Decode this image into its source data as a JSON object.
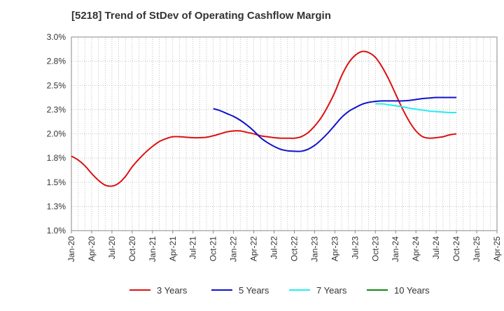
{
  "chart_data": {
    "type": "line",
    "title": "[5218]  Trend of StDev of Operating Cashflow Margin",
    "xlabel": "",
    "ylabel": "",
    "x_ticks": [
      "Jan-20",
      "Apr-20",
      "Jul-20",
      "Oct-20",
      "Jan-21",
      "Apr-21",
      "Jul-21",
      "Oct-21",
      "Jan-22",
      "Apr-22",
      "Jul-22",
      "Oct-22",
      "Jan-23",
      "Apr-23",
      "Jul-23",
      "Oct-23",
      "Jan-24",
      "Apr-24",
      "Jul-24",
      "Oct-24",
      "Jan-25",
      "Apr-25"
    ],
    "y_ticks": [
      "1.0%",
      "1.3%",
      "1.5%",
      "1.8%",
      "2.0%",
      "2.3%",
      "2.5%",
      "2.8%",
      "3.0%"
    ],
    "ylim": [
      1.0,
      3.0
    ],
    "grid": true,
    "legend_position": "bottom",
    "series": [
      {
        "name": "3 Years",
        "color": "#dd1111",
        "x": [
          "Jan-20",
          "Feb-20",
          "Mar-20",
          "Apr-20",
          "May-20",
          "Jun-20",
          "Jul-20",
          "Aug-20",
          "Sep-20",
          "Oct-20",
          "Nov-20",
          "Dec-20",
          "Jan-21",
          "Feb-21",
          "Mar-21",
          "Apr-21",
          "May-21",
          "Jun-21",
          "Jul-21",
          "Aug-21",
          "Sep-21",
          "Oct-21",
          "Nov-21",
          "Dec-21",
          "Jan-22",
          "Feb-22",
          "Mar-22",
          "Apr-22",
          "May-22",
          "Jun-22",
          "Jul-22",
          "Aug-22",
          "Sep-22",
          "Oct-22",
          "Nov-22",
          "Dec-22",
          "Jan-23",
          "Feb-23",
          "Mar-23",
          "Apr-23",
          "May-23",
          "Jun-23",
          "Jul-23",
          "Aug-23",
          "Sep-23",
          "Oct-23",
          "Nov-23",
          "Dec-23",
          "Jan-24",
          "Feb-24",
          "Mar-24",
          "Apr-24",
          "May-24",
          "Jun-24",
          "Jul-24",
          "Aug-24",
          "Sep-24",
          "Oct-24"
        ],
        "values": [
          1.77,
          1.73,
          1.67,
          1.59,
          1.52,
          1.47,
          1.46,
          1.49,
          1.56,
          1.66,
          1.74,
          1.81,
          1.87,
          1.92,
          1.95,
          1.97,
          1.97,
          1.965,
          1.96,
          1.96,
          1.965,
          1.98,
          2.0,
          2.02,
          2.03,
          2.03,
          2.015,
          2.0,
          1.98,
          1.97,
          1.96,
          1.955,
          1.955,
          1.955,
          1.97,
          2.01,
          2.08,
          2.17,
          2.29,
          2.43,
          2.6,
          2.73,
          2.81,
          2.85,
          2.84,
          2.79,
          2.69,
          2.56,
          2.41,
          2.26,
          2.13,
          2.03,
          1.97,
          1.955,
          1.96,
          1.97,
          1.99,
          2.0
        ]
      },
      {
        "name": "5 Years",
        "color": "#1111cc",
        "x": [
          "Oct-21",
          "Nov-21",
          "Dec-21",
          "Jan-22",
          "Feb-22",
          "Mar-22",
          "Apr-22",
          "May-22",
          "Jun-22",
          "Jul-22",
          "Aug-22",
          "Sep-22",
          "Oct-22",
          "Nov-22",
          "Dec-22",
          "Jan-23",
          "Feb-23",
          "Mar-23",
          "Apr-23",
          "May-23",
          "Jun-23",
          "Jul-23",
          "Aug-23",
          "Sep-23",
          "Oct-23",
          "Nov-23",
          "Dec-23",
          "Jan-24",
          "Feb-24",
          "Mar-24",
          "Apr-24",
          "May-24",
          "Jun-24",
          "Jul-24",
          "Aug-24",
          "Sep-24",
          "Oct-24"
        ],
        "values": [
          2.26,
          2.24,
          2.21,
          2.18,
          2.14,
          2.09,
          2.03,
          1.96,
          1.91,
          1.87,
          1.84,
          1.825,
          1.82,
          1.82,
          1.84,
          1.88,
          1.94,
          2.01,
          2.09,
          2.17,
          2.23,
          2.27,
          2.305,
          2.325,
          2.335,
          2.34,
          2.34,
          2.34,
          2.34,
          2.345,
          2.355,
          2.365,
          2.37,
          2.375,
          2.375,
          2.375,
          2.375
        ]
      },
      {
        "name": "7 Years",
        "color": "#22eeee",
        "x": [
          "Oct-23",
          "Nov-23",
          "Dec-23",
          "Jan-24",
          "Feb-24",
          "Mar-24",
          "Apr-24",
          "May-24",
          "Jun-24",
          "Jul-24",
          "Aug-24",
          "Sep-24",
          "Oct-24"
        ],
        "values": [
          2.31,
          2.31,
          2.3,
          2.29,
          2.28,
          2.265,
          2.255,
          2.245,
          2.235,
          2.23,
          2.225,
          2.22,
          2.22
        ]
      },
      {
        "name": "10 Years",
        "color": "#118811",
        "x": [],
        "values": []
      }
    ]
  }
}
